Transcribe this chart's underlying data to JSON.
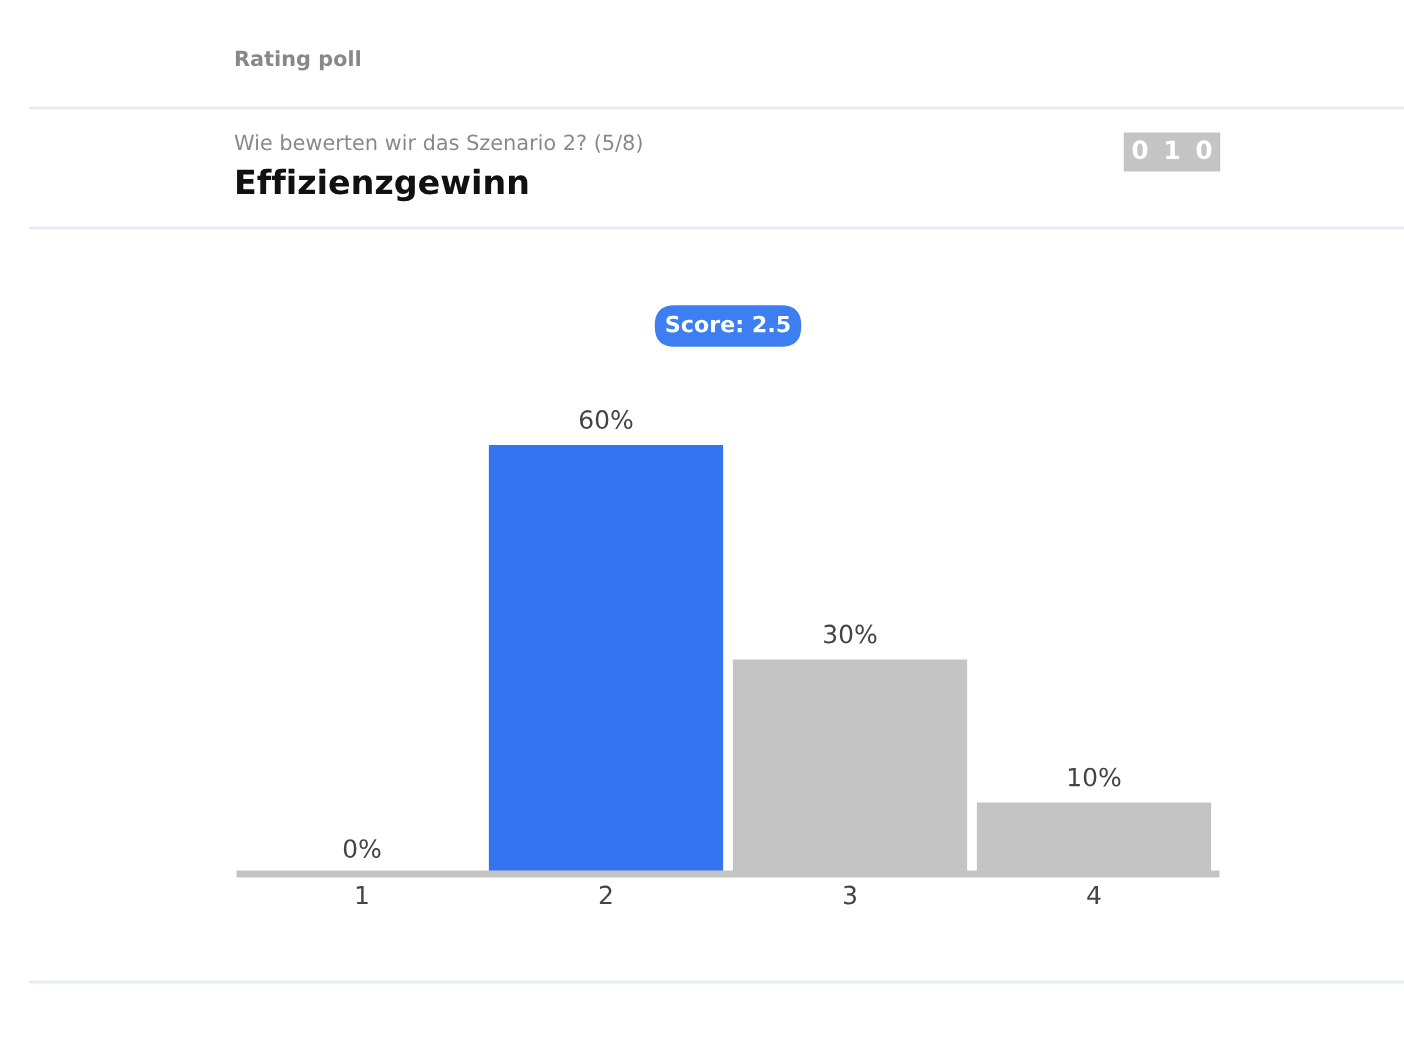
{
  "chart_data": {
    "type": "bar",
    "title": "Effizienzgewinn",
    "subtitle": "Wie bewerten wir das Szenario 2? (5/8)",
    "annotations": [
      "Rating poll",
      "Score: 2.5",
      "010"
    ],
    "categories": [
      "1",
      "2",
      "3",
      "4"
    ],
    "values": [
      0,
      60,
      30,
      10
    ],
    "colors": [
      "#c4c4c4",
      "#3574f0",
      "#c4c4c4",
      "#c4c4c4"
    ],
    "value_labels": [
      "0%",
      "60%",
      "30%",
      "10%"
    ],
    "grid": false,
    "legend": false
  }
}
